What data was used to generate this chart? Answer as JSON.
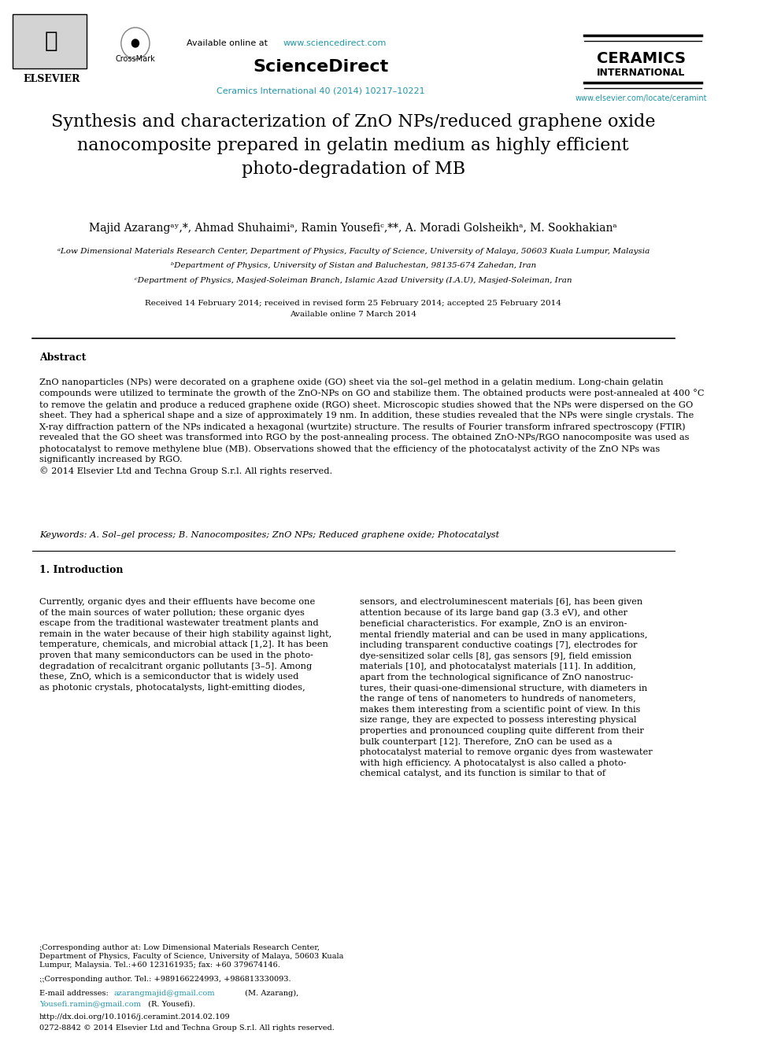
{
  "bg_color": "#ffffff",
  "header": {
    "available_text": "Available online at ",
    "sciencedirect_url": "www.sciencedirect.com",
    "sciencedirect_brand": "ScienceDirect",
    "journal_line": "Ceramics International 40 (2014) 10217–10221",
    "journal_url": "www.elsevier.com/locate/ceramint",
    "ceramics_line1": "CERAMICS",
    "ceramics_line2": "INTERNATIONAL",
    "url_color": "#2196a8",
    "brand_color": "#000000",
    "journal_color": "#2196a8"
  },
  "title": "Synthesis and characterization of ZnO NPs/reduced graphene oxide\nnanocomposite prepared in gelatin medium as highly efficient\nphoto-degradation of MB",
  "authors": "Majid Azarangᵃʸ,*, Ahmad Shuhaimiᵃ, Ramin Yousefiᶜ,**, A. Moradi Golsheikhᵃ, M. Sookhakianᵃ",
  "affil_a": "ᵃLow Dimensional Materials Research Center, Department of Physics, Faculty of Science, University of Malaya, 50603 Kuala Lumpur, Malaysia",
  "affil_b": "ᵇDepartment of Physics, University of Sistan and Baluchestan, 98135-674 Zahedan, Iran",
  "affil_c": "ᶜDepartment of Physics, Masjed-Soleiman Branch, Islamic Azad University (I.A.U), Masjed-Soleiman, Iran",
  "dates": "Received 14 February 2014; received in revised form 25 February 2014; accepted 25 February 2014",
  "online": "Available online 7 March 2014",
  "abstract_title": "Abstract",
  "abstract_text": "ZnO nanoparticles (NPs) were decorated on a graphene oxide (GO) sheet via the sol–gel method in a gelatin medium. Long-chain gelatin\ncompounds were utilized to terminate the growth of the ZnO-NPs on GO and stabilize them. The obtained products were post-annealed at 400 °C\nto remove the gelatin and produce a reduced graphene oxide (RGO) sheet. Microscopic studies showed that the NPs were dispersed on the GO\nsheet. They had a spherical shape and a size of approximately 19 nm. In addition, these studies revealed that the NPs were single crystals. The\nX-ray diffraction pattern of the NPs indicated a hexagonal (wurtzite) structure. The results of Fourier transform infrared spectroscopy (FTIR)\nrevealed that the GO sheet was transformed into RGO by the post-annealing process. The obtained ZnO-NPs/RGO nanocomposite was used as\nphotocatalyst to remove methylene blue (MB). Observations showed that the efficiency of the photocatalyst activity of the ZnO NPs was\nsignificantly increased by RGO.\n© 2014 Elsevier Ltd and Techna Group S.r.l. All rights reserved.",
  "keywords": "Keywords: A. Sol–gel process; B. Nanocomposites; ZnO NPs; Reduced graphene oxide; Photocatalyst",
  "section1_title": "1. Introduction",
  "col1_text": "Currently, organic dyes and their effluents have become one\nof the main sources of water pollution; these organic dyes\nescape from the traditional wastewater treatment plants and\nremain in the water because of their high stability against light,\ntemperature, chemicals, and microbial attack [1,2]. It has been\nproven that many semiconductors can be used in the photo-\ndegradation of recalcitrant organic pollutants [3–5]. Among\nthese, ZnO, which is a semiconductor that is widely used\nas photonic crystals, photocatalysts, light-emitting diodes,",
  "col1_footnote1": "⁏Corresponding author at: Low Dimensional Materials Research Center,\nDepartment of Physics, Faculty of Science, University of Malaya, 50603 Kuala\nLumpur, Malaysia. Tel.:+60 123161935; fax: +60 379674146.",
  "col1_footnote2": "⁏⁏Corresponding author. Tel.: +989166224993, +986813330093.",
  "col1_footnote3": "E-mail addresses: azarangmajid@gmail.com (M. Azarang),\nYousefi.ramin@gmail.com (R. Yousefi).",
  "col1_doi": "http://dx.doi.org/10.1016/j.ceramint.2014.02.109",
  "col1_issn": "0272-8842 © 2014 Elsevier Ltd and Techna Group S.r.l. All rights reserved.",
  "col2_text": "sensors, and electroluminescent materials [6], has been given\nattention because of its large band gap (3.3 eV), and other\nbeneficial characteristics. For example, ZnO is an environ-\nmental friendly material and can be used in many applications,\nincluding transparent conductive coatings [7], electrodes for\ndye-sensitized solar cells [8], gas sensors [9], field emission\nmaterials [10], and photocatalyst materials [11]. In addition,\napart from the technological significance of ZnO nanostruc-\ntures, their quasi-one-dimensional structure, with diameters in\nthe range of tens of nanometers to hundreds of nanometers,\nmakes them interesting from a scientific point of view. In this\nsize range, they are expected to possess interesting physical\nproperties and pronounced coupling quite different from their\nbulk counterpart [12]. Therefore, ZnO can be used as a\nphotocatalyst material to remove organic dyes from wastewater\nwith high efficiency. A photocatalyst is also called a photo-\nchemical catalyst, and its function is similar to that of",
  "email_color": "#2196a8",
  "link_color": "#2196a8"
}
